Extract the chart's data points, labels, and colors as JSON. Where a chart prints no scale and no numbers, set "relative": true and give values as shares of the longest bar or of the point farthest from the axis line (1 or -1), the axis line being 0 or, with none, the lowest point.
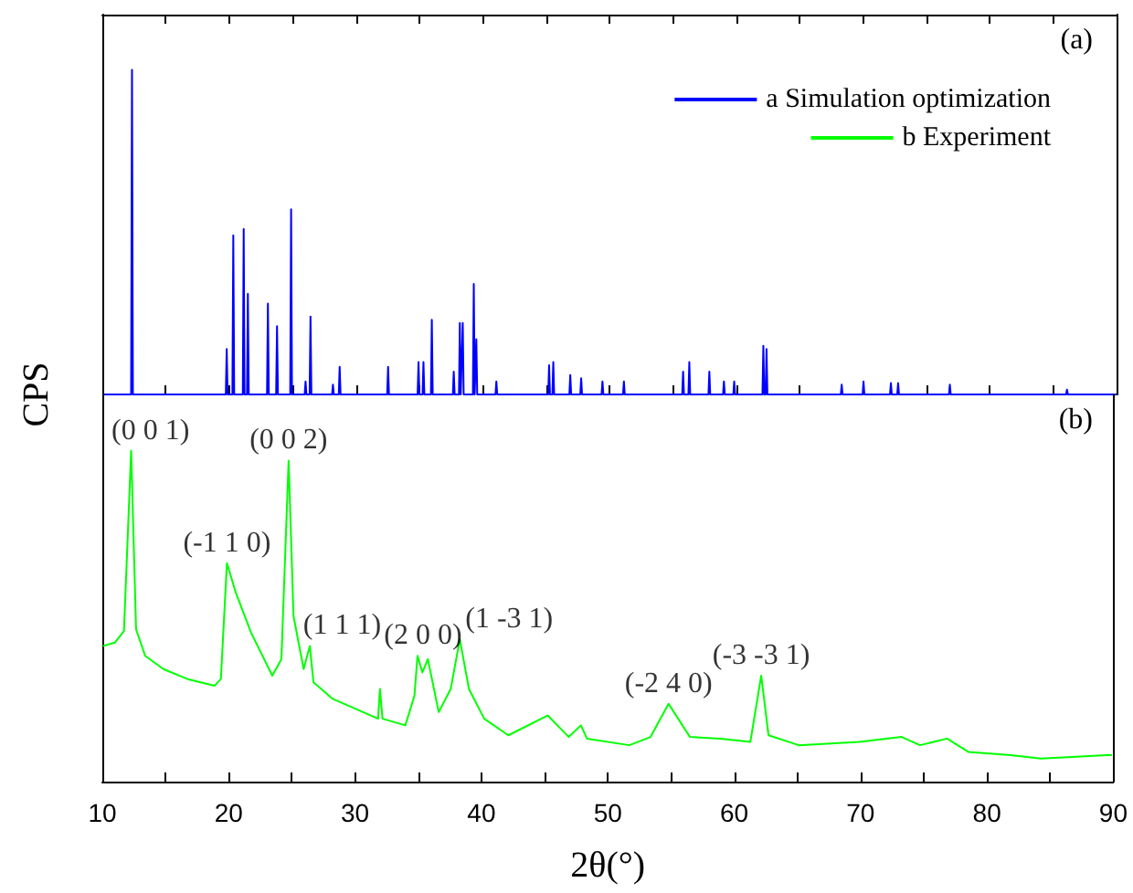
{
  "chart_data": [
    {
      "type": "line",
      "relative": true,
      "ylabel": "CPS",
      "legend": "top right",
      "grid": false,
      "marker": "none",
      "tick_labels": false,
      "annotations": [
        "(a)"
      ],
      "xlim": [
        10,
        90
      ],
      "xticks": [
        10,
        {
          "value": 15,
          "label": null
        },
        20,
        {
          "value": 25,
          "label": null
        },
        30,
        {
          "value": 35,
          "label": null
        },
        40,
        {
          "value": 45,
          "label": null
        },
        50,
        {
          "value": 55,
          "label": null
        },
        60,
        {
          "value": 65,
          "label": null
        },
        70,
        {
          "value": 75,
          "label": null
        },
        80,
        {
          "value": 85,
          "label": null
        },
        90
      ],
      "series": [
        {
          "name": "a Simulation optimization",
          "color": "#0000ff",
          "x": [
            10,
            12.27,
            12.34,
            12.41,
            19.74,
            19.81,
            19.88,
            20.26,
            20.33,
            20.4,
            21.08,
            21.15,
            21.22,
            21.41,
            21.48,
            21.55,
            22.99,
            23.06,
            23.13,
            23.71,
            23.78,
            23.85,
            24.82,
            24.89,
            24.96,
            25.96,
            26.03,
            26.1,
            26.35,
            26.42,
            26.49,
            28.12,
            28.19,
            28.26,
            28.65,
            28.72,
            28.79,
            32.47,
            32.54,
            32.61,
            34.87,
            34.94,
            35.01,
            35.26,
            35.33,
            35.4,
            35.92,
            35.99,
            36.06,
            37.65,
            37.72,
            37.79,
            38.13,
            38.2,
            38.27,
            38.36,
            38.43,
            38.5,
            39.23,
            39.3,
            39.37,
            39.43,
            39.5,
            39.57,
            41.01,
            41.08,
            41.15,
            45.17,
            45.24,
            45.31,
            45.5,
            45.57,
            45.64,
            46.84,
            46.91,
            46.98,
            47.7,
            47.77,
            47.84,
            49.38,
            49.45,
            49.52,
            51.07,
            51.14,
            51.21,
            55.74,
            55.81,
            55.88,
            56.23,
            56.3,
            56.37,
            57.81,
            57.88,
            57.95,
            58.96,
            59.03,
            59.1,
            59.77,
            59.84,
            59.91,
            62.07,
            62.14,
            62.21,
            62.32,
            62.39,
            62.46,
            68.25,
            68.32,
            68.39,
            69.97,
            70.04,
            70.11,
            72.13,
            72.2,
            72.27,
            72.7,
            72.77,
            72.84,
            76.78,
            76.85,
            76.92,
            86.02,
            86.09,
            86.16,
            90
          ],
          "values": [
            0,
            0,
            1.0,
            0,
            0,
            0.14,
            0,
            0,
            0.49,
            0,
            0,
            0.51,
            0,
            0,
            0.31,
            0,
            0,
            0.28,
            0,
            0,
            0.21,
            0,
            0,
            0.57,
            0,
            0,
            0.04,
            0,
            0,
            0.24,
            0,
            0,
            0.03,
            0,
            0,
            0.085,
            0,
            0,
            0.085,
            0,
            0,
            0.1,
            0,
            0,
            0.1,
            0,
            0,
            0.23,
            0,
            0,
            0.07,
            0,
            0,
            0.22,
            0,
            0,
            0.22,
            0,
            0,
            0.34,
            0,
            0,
            0.17,
            0,
            0,
            0.04,
            0,
            0,
            0.09,
            0,
            0,
            0.1,
            0,
            0,
            0.06,
            0,
            0,
            0.05,
            0,
            0,
            0.04,
            0,
            0,
            0.04,
            0,
            0,
            0.07,
            0,
            0,
            0.1,
            0,
            0,
            0.07,
            0,
            0,
            0.04,
            0,
            0,
            0.04,
            0,
            0,
            0.15,
            0,
            0,
            0.14,
            0,
            0,
            0.03,
            0,
            0,
            0.04,
            0,
            0,
            0.035,
            0,
            0,
            0.035,
            0,
            0,
            0.03,
            0,
            0,
            0.015,
            0,
            0
          ]
        }
      ]
    },
    {
      "type": "line",
      "relative": true,
      "xlabel": "2θ(°)",
      "legend": "top right",
      "grid": false,
      "marker": "none",
      "xlim": [
        10,
        90
      ],
      "xticks": [
        10,
        {
          "value": 15,
          "label": null
        },
        20,
        {
          "value": 25,
          "label": null
        },
        30,
        {
          "value": 35,
          "label": null
        },
        40,
        {
          "value": 45,
          "label": null
        },
        50,
        {
          "value": 55,
          "label": null
        },
        60,
        {
          "value": 65,
          "label": null
        },
        70,
        {
          "value": 75,
          "label": null
        },
        80,
        {
          "value": 85,
          "label": null
        },
        90
      ],
      "annotations": [
        "(b)",
        {
          "text": "(0 0 1)",
          "x": 12.28,
          "y": 1.0
        },
        {
          "text": "(-1 1 0)",
          "x": 19.86,
          "y": 0.66
        },
        {
          "text": "(0 0 2)",
          "x": 24.74,
          "y": 0.97
        },
        {
          "text": "(1 1 1)",
          "x": 26.42,
          "y": 0.41
        },
        {
          "text": "(2 0 0)",
          "x": 34.94,
          "y": 0.38
        },
        {
          "text": "(1 -3 1)",
          "x": 38.29,
          "y": 0.43
        },
        {
          "text": "(-2 4 0)",
          "x": 54.81,
          "y": 0.235
        },
        {
          "text": "(-3 -3 1)",
          "x": 62.14,
          "y": 0.32
        }
      ],
      "series": [
        {
          "name": "b Experiment",
          "color": "#00ff00",
          "x": [
            10.05,
            10.99,
            11.71,
            12.28,
            12.67,
            13.39,
            14.83,
            16.74,
            18.89,
            19.38,
            19.86,
            20.57,
            21.77,
            23.45,
            24.17,
            24.74,
            25.13,
            25.93,
            26.42,
            26.71,
            28.23,
            30.63,
            31.82,
            31.97,
            32.17,
            33.98,
            34.7,
            34.94,
            35.33,
            35.76,
            36.62,
            37.57,
            38.29,
            39.01,
            40.22,
            42.13,
            45.24,
            46.91,
            47.87,
            48.35,
            51.71,
            53.38,
            54.81,
            56.49,
            58.89,
            61.28,
            62.14,
            62.72,
            65.11,
            69.9,
            73.26,
            74.7,
            76.85,
            78.52,
            81.88,
            84.27,
            89.54,
            89.9
          ],
          "values": [
            0.41,
            0.42,
            0.455,
            1.0,
            0.46,
            0.38,
            0.34,
            0.31,
            0.29,
            0.31,
            0.66,
            0.57,
            0.45,
            0.32,
            0.37,
            0.97,
            0.5,
            0.34,
            0.41,
            0.3,
            0.25,
            0.21,
            0.19,
            0.28,
            0.19,
            0.17,
            0.26,
            0.38,
            0.33,
            0.37,
            0.21,
            0.28,
            0.43,
            0.28,
            0.19,
            0.14,
            0.2,
            0.135,
            0.17,
            0.13,
            0.11,
            0.135,
            0.235,
            0.135,
            0.13,
            0.12,
            0.32,
            0.14,
            0.11,
            0.12,
            0.135,
            0.11,
            0.13,
            0.09,
            0.08,
            0.07,
            0.08,
            0.08
          ]
        }
      ]
    }
  ]
}
